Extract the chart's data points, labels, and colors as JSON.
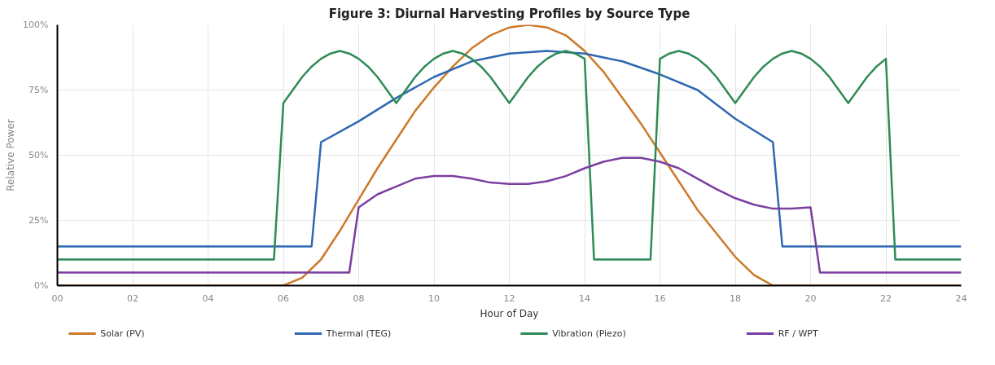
{
  "chart_data": {
    "type": "line",
    "title": "Figure 3: Diurnal Harvesting Profiles by Source Type",
    "xlabel": "Hour of Day",
    "ylabel": "Relative Power",
    "xlim": [
      0,
      24
    ],
    "ylim": [
      0,
      100
    ],
    "xticks": [
      {
        "value": 0,
        "label": "00"
      },
      {
        "value": 2,
        "label": "02"
      },
      {
        "value": 4,
        "label": "04"
      },
      {
        "value": 6,
        "label": "06"
      },
      {
        "value": 8,
        "label": "08"
      },
      {
        "value": 10,
        "label": "10"
      },
      {
        "value": 12,
        "label": "12"
      },
      {
        "value": 14,
        "label": "14"
      },
      {
        "value": 16,
        "label": "16"
      },
      {
        "value": 18,
        "label": "18"
      },
      {
        "value": 20,
        "label": "20"
      },
      {
        "value": 22,
        "label": "22"
      },
      {
        "value": 24,
        "label": "24"
      }
    ],
    "yticks": [
      {
        "value": 0,
        "label": "0%"
      },
      {
        "value": 25,
        "label": "25%"
      },
      {
        "value": 50,
        "label": "50%"
      },
      {
        "value": 75,
        "label": "75%"
      },
      {
        "value": 100,
        "label": "100%"
      }
    ],
    "grid": true,
    "legend": "bottom",
    "marker": "none",
    "line_style": "solid",
    "series": [
      {
        "name": "Solar (PV)",
        "color": "#cc7a29",
        "x": [
          0,
          6,
          6.5,
          7,
          7.5,
          8,
          8.5,
          9,
          9.5,
          10,
          10.5,
          11,
          11.5,
          12,
          12.5,
          13,
          13.5,
          14,
          14.5,
          15,
          15.5,
          16,
          16.5,
          17,
          17.5,
          18,
          18.5,
          19,
          24
        ],
        "values": [
          0,
          0,
          3,
          10,
          21,
          33,
          45,
          56,
          67,
          76,
          84,
          91,
          96,
          99,
          100,
          99,
          96,
          90,
          82,
          72,
          62,
          51,
          40,
          29,
          20,
          11,
          4,
          0,
          0
        ]
      },
      {
        "name": "Thermal (TEG)",
        "color": "#2f67b1",
        "x": [
          0,
          6.75,
          7,
          8,
          9,
          10,
          11,
          12,
          13,
          14,
          15,
          16,
          17,
          18,
          19,
          19.25,
          24
        ],
        "values": [
          15,
          15,
          55,
          63,
          72,
          80,
          86,
          89,
          90,
          89,
          86,
          81,
          75,
          64,
          55,
          15,
          15
        ]
      },
      {
        "name": "Vibration (Piezo)",
        "color": "#2e8b57",
        "x": [
          0,
          5.75,
          6,
          6.25,
          6.5,
          6.75,
          7,
          7.25,
          7.5,
          7.75,
          8,
          8.25,
          8.5,
          8.75,
          9,
          9.25,
          9.5,
          9.75,
          10,
          10.25,
          10.5,
          10.75,
          11,
          11.25,
          11.5,
          11.75,
          12,
          12.25,
          12.5,
          12.75,
          13,
          13.25,
          13.5,
          13.75,
          14,
          14.25,
          15.75,
          16,
          16.25,
          16.5,
          16.75,
          17,
          17.25,
          17.5,
          17.75,
          18,
          18.25,
          18.5,
          18.75,
          19,
          19.25,
          19.5,
          19.75,
          20,
          20.25,
          20.5,
          20.75,
          21,
          21.25,
          21.5,
          21.75,
          22,
          22.25,
          24
        ],
        "values": [
          10,
          10,
          70,
          75,
          80,
          84,
          87,
          89,
          90,
          89,
          87,
          84,
          80,
          75,
          70,
          75,
          80,
          84,
          87,
          89,
          90,
          89,
          87,
          84,
          80,
          75,
          70,
          75,
          80,
          84,
          87,
          89,
          90,
          89,
          87,
          10,
          10,
          87,
          89,
          90,
          89,
          87,
          84,
          80,
          75,
          70,
          75,
          80,
          84,
          87,
          89,
          90,
          89,
          87,
          84,
          80,
          75,
          70,
          75,
          80,
          84,
          87,
          10,
          10
        ]
      },
      {
        "name": "RF / WPT",
        "color": "#7b3fa0",
        "x": [
          0,
          7.75,
          8,
          8.5,
          9,
          9.5,
          10,
          10.5,
          11,
          11.5,
          12,
          12.5,
          13,
          13.5,
          14,
          14.5,
          15,
          15.5,
          16,
          16.5,
          17,
          17.5,
          18,
          18.5,
          19,
          19.5,
          20,
          20.25,
          24
        ],
        "values": [
          5,
          5,
          30,
          35,
          38,
          41,
          42,
          42,
          41,
          39.5,
          39,
          39,
          40,
          42,
          45,
          47.5,
          49,
          49,
          47.5,
          45,
          41,
          37,
          33.5,
          31,
          29.5,
          29.5,
          30,
          5,
          5
        ]
      }
    ]
  }
}
